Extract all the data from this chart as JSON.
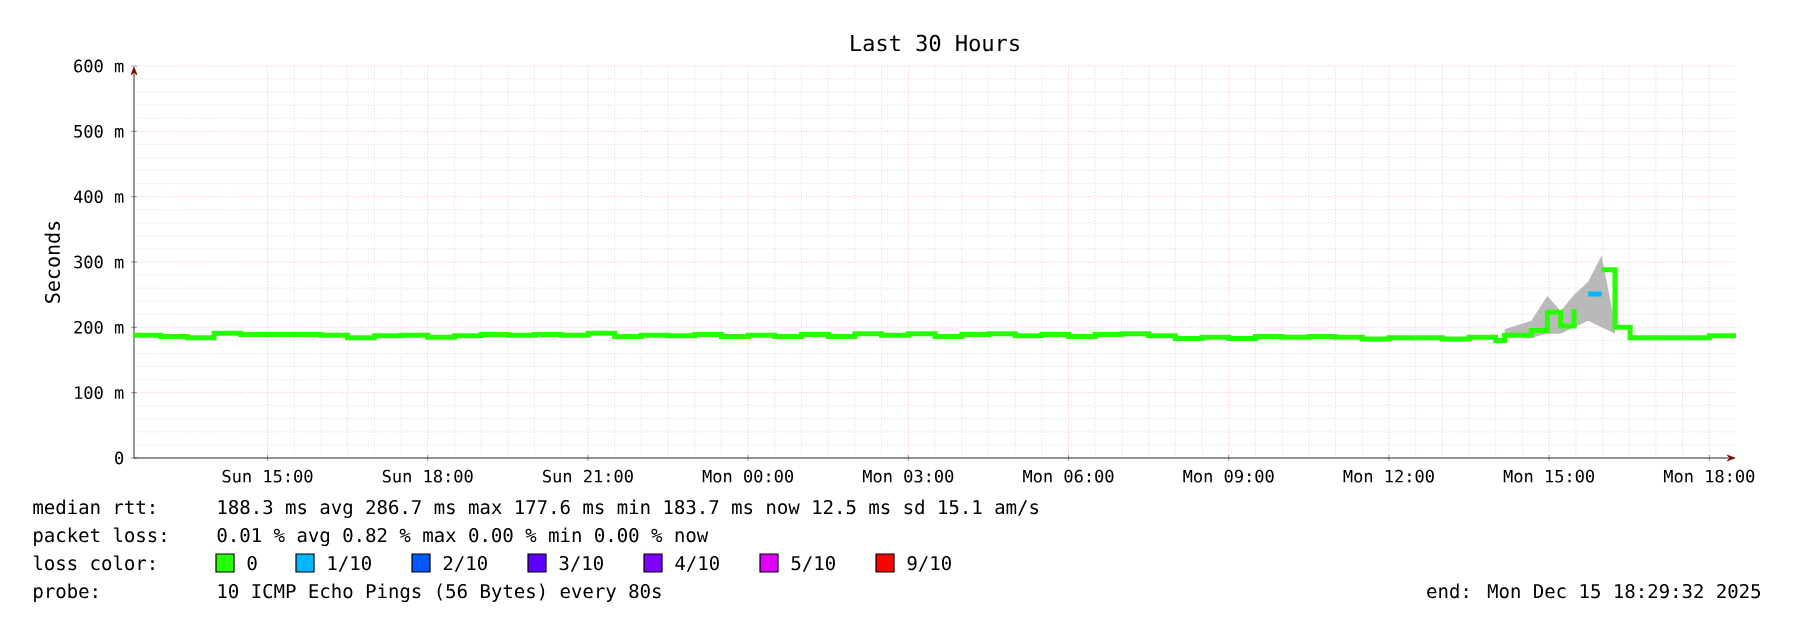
{
  "chart_data": {
    "type": "step",
    "title": "Last 30 Hours",
    "ylabel": "Seconds",
    "xlim": [
      "2025-12-14T12:30",
      "2025-12-15T18:30"
    ],
    "ylim": [
      0,
      600
    ],
    "xticks": [
      {
        "value": "2025-12-14T15:00",
        "label": "Sun 15:00"
      },
      {
        "value": "2025-12-14T18:00",
        "label": "Sun 18:00"
      },
      {
        "value": "2025-12-14T21:00",
        "label": "Sun 21:00"
      },
      {
        "value": "2025-12-15T00:00",
        "label": "Mon 00:00"
      },
      {
        "value": "2025-12-15T03:00",
        "label": "Mon 03:00"
      },
      {
        "value": "2025-12-15T06:00",
        "label": "Mon 06:00"
      },
      {
        "value": "2025-12-15T09:00",
        "label": "Mon 09:00"
      },
      {
        "value": "2025-12-15T12:00",
        "label": "Mon 12:00"
      },
      {
        "value": "2025-12-15T15:00",
        "label": "Mon 15:00"
      },
      {
        "value": "2025-12-15T18:00",
        "label": "Mon 18:00"
      }
    ],
    "yticks": [
      0,
      {
        "value": 100,
        "label": "100 m"
      },
      {
        "value": 200,
        "label": "200 m"
      },
      {
        "value": 300,
        "label": "300 m"
      },
      {
        "value": 400,
        "label": "400 m"
      },
      {
        "value": 500,
        "label": "500 m"
      },
      {
        "value": 600,
        "label": "600 m"
      }
    ],
    "grid": true,
    "legend": "bottom",
    "legend_title": "loss color:",
    "series": [
      {
        "name": "0",
        "color": "#26ff00",
        "x": [
          "2025-12-14T12:30",
          "2025-12-14T13:00",
          "2025-12-14T13:30",
          "2025-12-14T14:00",
          "2025-12-14T14:30",
          "2025-12-14T15:00",
          "2025-12-14T15:30",
          "2025-12-14T16:00",
          "2025-12-14T16:30",
          "2025-12-14T17:00",
          "2025-12-14T17:30",
          "2025-12-14T18:00",
          "2025-12-14T18:30",
          "2025-12-14T19:00",
          "2025-12-14T19:30",
          "2025-12-14T20:00",
          "2025-12-14T20:30",
          "2025-12-14T21:00",
          "2025-12-14T21:30",
          "2025-12-14T22:00",
          "2025-12-14T22:30",
          "2025-12-14T23:00",
          "2025-12-14T23:30",
          "2025-12-15T00:00",
          "2025-12-15T00:30",
          "2025-12-15T01:00",
          "2025-12-15T01:30",
          "2025-12-15T02:00",
          "2025-12-15T02:30",
          "2025-12-15T03:00",
          "2025-12-15T03:30",
          "2025-12-15T04:00",
          "2025-12-15T04:30",
          "2025-12-15T05:00",
          "2025-12-15T05:30",
          "2025-12-15T06:00",
          "2025-12-15T06:30",
          "2025-12-15T07:00",
          "2025-12-15T07:30",
          "2025-12-15T08:00",
          "2025-12-15T08:30",
          "2025-12-15T09:00",
          "2025-12-15T09:30",
          "2025-12-15T10:00",
          "2025-12-15T10:30",
          "2025-12-15T11:00",
          "2025-12-15T11:30",
          "2025-12-15T12:00",
          "2025-12-15T12:30",
          "2025-12-15T13:00",
          "2025-12-15T13:30",
          "2025-12-15T14:00",
          "2025-12-15T14:10",
          "2025-12-15T14:40",
          "2025-12-15T14:58",
          "2025-12-15T15:13",
          "2025-12-15T15:28",
          "2025-12-15T15:44",
          "2025-12-15T15:59",
          "2025-12-15T16:14",
          "2025-12-15T16:31",
          "2025-12-15T17:00",
          "2025-12-15T17:30",
          "2025-12-15T18:00",
          "2025-12-15T18:30"
        ],
        "values": [
          188,
          186,
          184,
          191,
          189,
          189,
          189,
          188,
          184,
          187,
          188,
          185,
          187,
          189,
          188,
          189,
          188,
          191,
          186,
          188,
          187,
          189,
          186,
          188,
          186,
          189,
          186,
          190,
          188,
          190,
          186,
          189,
          190,
          187,
          189,
          186,
          189,
          190,
          187,
          183,
          185,
          183,
          186,
          185,
          186,
          185,
          182,
          184,
          184,
          182,
          185,
          180,
          188,
          195,
          223,
          202,
          228,
          null,
          288,
          200,
          184,
          184,
          184,
          187,
          187
        ],
        "lower": [
          null,
          null,
          null,
          null,
          null,
          null,
          null,
          null,
          null,
          null,
          null,
          null,
          null,
          null,
          null,
          null,
          null,
          null,
          null,
          null,
          null,
          null,
          null,
          null,
          null,
          null,
          null,
          null,
          null,
          null,
          null,
          null,
          null,
          null,
          null,
          null,
          null,
          null,
          null,
          null,
          null,
          null,
          null,
          null,
          null,
          null,
          null,
          null,
          null,
          null,
          null,
          null,
          188,
          184,
          190,
          190,
          200,
          210,
          200,
          190,
          null,
          null,
          null,
          null,
          null
        ],
        "upper": [
          null,
          null,
          null,
          null,
          null,
          null,
          null,
          null,
          null,
          null,
          null,
          null,
          null,
          null,
          null,
          null,
          null,
          null,
          null,
          null,
          null,
          null,
          null,
          null,
          null,
          null,
          null,
          null,
          null,
          null,
          null,
          null,
          null,
          null,
          null,
          null,
          null,
          null,
          null,
          null,
          null,
          null,
          null,
          null,
          null,
          null,
          null,
          null,
          null,
          null,
          null,
          null,
          197,
          210,
          248,
          225,
          250,
          270,
          310,
          205,
          null,
          null,
          null,
          null,
          null
        ]
      },
      {
        "name": "1/10",
        "color": "#00b8ff",
        "x": [
          "2025-12-15T15:44",
          "2025-12-15T15:59"
        ],
        "values": [
          251,
          251
        ]
      },
      {
        "name": "2/10",
        "color": "#0059ff"
      },
      {
        "name": "3/10",
        "color": "#5e00ff"
      },
      {
        "name": "4/10",
        "color": "#7e00ff"
      },
      {
        "name": "5/10",
        "color": "#dd00ff"
      },
      {
        "name": "9/10",
        "color": "#ff0000"
      }
    ],
    "annotations": [
      "median rtt:",
      "188.3 ms avg 286.7 ms max 177.6 ms min 183.7 ms now 12.5 ms sd 15.1 am/s",
      "packet loss:",
      "0.01 % avg 0.82 % max 0.00 % min 0.00 % now",
      "probe:",
      "10 ICMP Echo Pings (56 Bytes) every 80s",
      "end: Mon Dec 15 18:29:32 2025"
    ]
  }
}
